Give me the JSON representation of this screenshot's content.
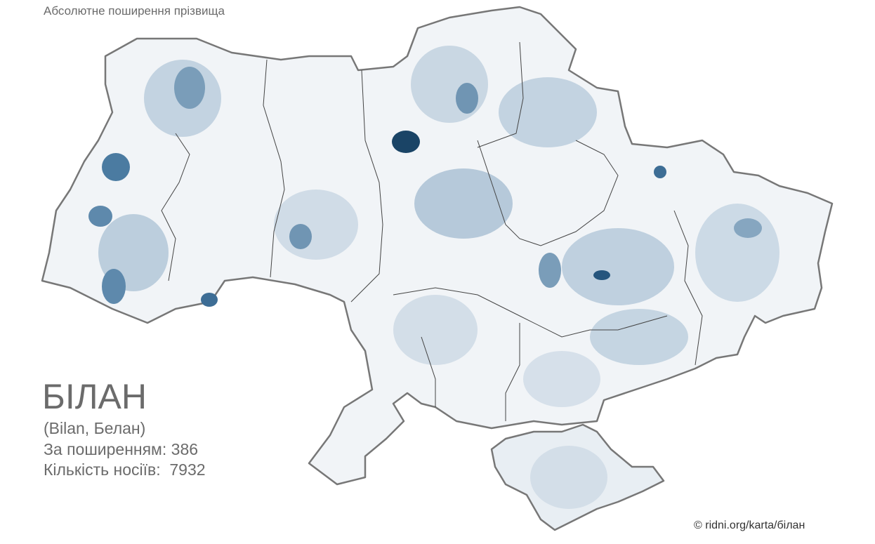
{
  "header": {
    "title": "Абсолютне поширення прізвища"
  },
  "surname": {
    "name": "БІЛАН",
    "variants": "(Bilan, Белан)",
    "rank": "За поширенням: 386",
    "count": "Кількість носіїв:  7932"
  },
  "footer": {
    "source": "© ridni.org/karta/білан"
  }
}
